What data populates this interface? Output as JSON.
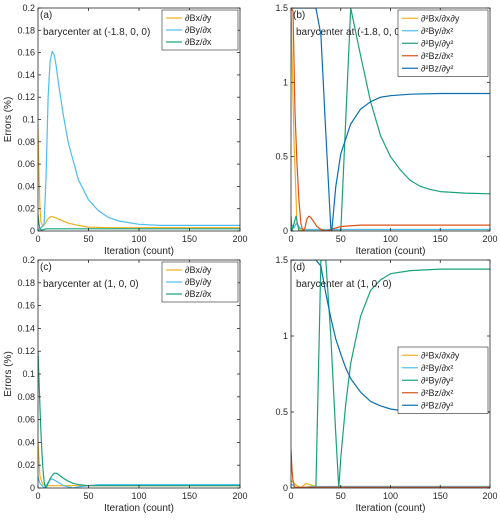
{
  "chart_data": [
    {
      "type": "line",
      "panel_label": "(a)",
      "annotation": "barycenter at (-1.8, 0, 0)",
      "xlabel": "Iteration (count)",
      "ylabel": "Errors (%)",
      "xlim": [
        0,
        200
      ],
      "ylim": [
        0,
        0.2
      ],
      "xticks": [
        "0",
        "50",
        "100",
        "150",
        "200"
      ],
      "yticks": [
        "0",
        "0.02",
        "0.04",
        "0.06",
        "0.08",
        "0.1",
        "0.12",
        "0.14",
        "0.16",
        "0.18",
        "0.2"
      ],
      "legend_position": "top-right",
      "series": [
        {
          "name": "∂Bx/∂y",
          "color": "#EDB120",
          "x": [
            0,
            1,
            2,
            3,
            5,
            8,
            10,
            13,
            17,
            22,
            30,
            40,
            50,
            70,
            100,
            150,
            200
          ],
          "y": [
            0.092,
            0.05,
            0.02,
            0.008,
            0.004,
            0.008,
            0.011,
            0.013,
            0.012,
            0.01,
            0.007,
            0.005,
            0.0035,
            0.003,
            0.003,
            0.003,
            0.003
          ]
        },
        {
          "name": "∂By/∂x",
          "color": "#4DBEEE",
          "x": [
            0,
            3,
            6,
            8,
            10,
            12,
            14,
            16,
            18,
            20,
            25,
            30,
            40,
            50,
            60,
            70,
            80,
            100,
            120,
            150,
            200
          ],
          "y": [
            0.0,
            0.003,
            0.006,
            0.05,
            0.12,
            0.152,
            0.161,
            0.158,
            0.148,
            0.134,
            0.104,
            0.079,
            0.046,
            0.028,
            0.018,
            0.012,
            0.009,
            0.006,
            0.005,
            0.005,
            0.005
          ]
        },
        {
          "name": "∂Bz/∂x",
          "color": "#19A17A",
          "x": [
            0,
            1,
            2,
            3,
            5,
            8,
            10,
            15,
            20,
            50,
            100,
            150,
            200
          ],
          "y": [
            0.015,
            0.006,
            0.002,
            0.001,
            0.001,
            0.002,
            0.002,
            0.002,
            0.002,
            0.002,
            0.002,
            0.002,
            0.002
          ]
        }
      ]
    },
    {
      "type": "line",
      "panel_label": "(b)",
      "annotation": "barycenter at (-1.8, 0, 0)",
      "xlabel": "Iteration (count)",
      "ylabel": "",
      "xlim": [
        0,
        200
      ],
      "ylim": [
        0,
        1.5
      ],
      "xticks": [
        "0",
        "50",
        "100",
        "150",
        "200"
      ],
      "yticks": [
        "0",
        "0.5",
        "1",
        "1.5"
      ],
      "legend_position": "top-right",
      "series": [
        {
          "name": "∂²Bx/∂x∂y",
          "color": "#EDB120",
          "x": [
            0,
            3,
            6,
            9,
            12,
            15,
            20,
            30,
            50,
            100,
            200
          ],
          "y": [
            1.5,
            0.6,
            0.05,
            0.01,
            0.0,
            0.01,
            0.01,
            0.01,
            0.01,
            0.01,
            0.01
          ]
        },
        {
          "name": "∂²By/∂x²",
          "color": "#4DBEEE",
          "x": [
            0,
            3,
            5,
            7,
            9,
            12,
            15,
            20,
            30,
            50,
            100,
            200
          ],
          "y": [
            0.05,
            0.02,
            0.05,
            0.04,
            0.02,
            0.01,
            0.01,
            0.01,
            0.01,
            0.01,
            0.01,
            0.01
          ]
        },
        {
          "name": "∂²By/∂y²",
          "color": "#19A17A",
          "x": [
            0,
            1,
            3,
            5,
            8,
            10,
            15,
            20,
            30,
            50,
            60,
            70,
            80,
            90,
            100,
            110,
            120,
            130,
            140,
            150,
            175,
            200
          ],
          "y": [
            0.1,
            0.0,
            0.05,
            0.1,
            0.0,
            0.0,
            0.0,
            0.0,
            0.0,
            0.0,
            1.5,
            1.18,
            0.87,
            0.64,
            0.5,
            0.41,
            0.34,
            0.3,
            0.28,
            0.265,
            0.255,
            0.25
          ]
        },
        {
          "name": "∂²Bz/∂x²",
          "color": "#D95319",
          "x": [
            0,
            2,
            4,
            6,
            8,
            10,
            12,
            14,
            16,
            18,
            20,
            23,
            26,
            30,
            35,
            40,
            50,
            70,
            100,
            150,
            200
          ],
          "y": [
            1.5,
            1.48,
            0.8,
            0.45,
            0.2,
            0.05,
            0.0,
            0.02,
            0.08,
            0.1,
            0.09,
            0.06,
            0.03,
            0.01,
            0.0,
            0.01,
            0.03,
            0.04,
            0.04,
            0.04,
            0.04
          ]
        },
        {
          "name": "∂²Bz/∂y²",
          "color": "#0A6FB0",
          "x": [
            0,
            5,
            10,
            15,
            20,
            25,
            30,
            35,
            40,
            41,
            45,
            50,
            60,
            70,
            80,
            90,
            100,
            120,
            150,
            200
          ],
          "y": [
            1.5,
            1.5,
            1.5,
            1.5,
            1.5,
            1.5,
            1.32,
            0.66,
            0.02,
            0.0,
            0.3,
            0.52,
            0.72,
            0.82,
            0.87,
            0.9,
            0.91,
            0.92,
            0.925,
            0.925
          ]
        }
      ]
    },
    {
      "type": "line",
      "panel_label": "(c)",
      "annotation": "barycenter at (1, 0, 0)",
      "xlabel": "Iteration (count)",
      "ylabel": "Errors (%)",
      "xlim": [
        0,
        200
      ],
      "ylim": [
        0,
        0.2
      ],
      "xticks": [
        "0",
        "50",
        "100",
        "150",
        "200"
      ],
      "yticks": [
        "0",
        "0.02",
        "0.04",
        "0.06",
        "0.08",
        "0.1",
        "0.12",
        "0.14",
        "0.16",
        "0.18",
        "0.2"
      ],
      "legend_position": "top-right",
      "series": [
        {
          "name": "∂Bx/∂y",
          "color": "#EDB120",
          "x": [
            0,
            2,
            5,
            8,
            10,
            15,
            20,
            30,
            50,
            100,
            200
          ],
          "y": [
            0.04,
            0.01,
            0.003,
            0.002,
            0.002,
            0.002,
            0.002,
            0.002,
            0.002,
            0.002,
            0.002
          ]
        },
        {
          "name": "∂By/∂y",
          "color": "#4DBEEE",
          "x": [
            0,
            2,
            4,
            6,
            8,
            10,
            12,
            14,
            16,
            18,
            20,
            22,
            25,
            30,
            35,
            40,
            50,
            60,
            70,
            100,
            200
          ],
          "y": [
            0.01,
            0.004,
            0.002,
            0.0,
            0.002,
            0.005,
            0.007,
            0.008,
            0.007,
            0.006,
            0.005,
            0.004,
            0.002,
            0.001,
            0.0,
            0.001,
            0.002,
            0.003,
            0.003,
            0.003,
            0.003
          ]
        },
        {
          "name": "∂Bz/∂x",
          "color": "#19A17A",
          "x": [
            0,
            1,
            2,
            3,
            4,
            5,
            6,
            7,
            8,
            10,
            12,
            14,
            16,
            18,
            20,
            23,
            26,
            30,
            35,
            40,
            50,
            60,
            80,
            100,
            150,
            200
          ],
          "y": [
            0.12,
            0.095,
            0.07,
            0.048,
            0.03,
            0.016,
            0.006,
            0.001,
            0.0,
            0.004,
            0.008,
            0.011,
            0.013,
            0.013,
            0.012,
            0.01,
            0.008,
            0.006,
            0.004,
            0.003,
            0.002,
            0.002,
            0.002,
            0.002,
            0.002,
            0.002
          ]
        }
      ]
    },
    {
      "type": "line",
      "panel_label": "(d)",
      "annotation": "barycenter at (1, 0, 0)",
      "xlabel": "Iteration (count)",
      "ylabel": "",
      "xlim": [
        0,
        200
      ],
      "ylim": [
        0,
        1.5
      ],
      "xticks": [
        "0",
        "50",
        "100",
        "150",
        "200"
      ],
      "yticks": [
        "0",
        "0.5",
        "1",
        "1.5"
      ],
      "legend_position": "right",
      "series": [
        {
          "name": "∂²Bx/∂x∂y",
          "color": "#EDB120",
          "x": [
            0,
            5,
            10,
            15,
            20,
            25,
            30,
            40,
            50,
            100,
            200
          ],
          "y": [
            0.05,
            0.02,
            0.0,
            0.03,
            0.02,
            0.01,
            0.0,
            0.01,
            0.01,
            0.01,
            0.01
          ]
        },
        {
          "name": "∂²By/∂x²",
          "color": "#4DBEEE",
          "x": [
            0,
            3,
            6,
            10,
            20,
            50,
            100,
            200
          ],
          "y": [
            0.03,
            0.01,
            0.0,
            0.0,
            0.01,
            0.01,
            0.01,
            0.01
          ]
        },
        {
          "name": "∂²By/∂y²",
          "color": "#19A17A",
          "x": [
            0,
            5,
            10,
            15,
            20,
            25,
            30,
            35,
            40,
            45,
            48,
            50,
            55,
            60,
            70,
            80,
            90,
            100,
            120,
            150,
            200
          ],
          "y": [
            0.0,
            0.0,
            0.0,
            0.0,
            0.0,
            0.0,
            1.5,
            1.5,
            1.0,
            0.35,
            0.0,
            0.2,
            0.55,
            0.82,
            1.13,
            1.3,
            1.37,
            1.41,
            1.43,
            1.44,
            1.44
          ]
        },
        {
          "name": "∂²Bz/∂x²",
          "color": "#D95319",
          "x": [
            0,
            1,
            2,
            3,
            4,
            6,
            8,
            10,
            15,
            20,
            50,
            200
          ],
          "y": [
            0.25,
            0.12,
            0.05,
            0.02,
            0.0,
            0.005,
            0.005,
            0.005,
            0.005,
            0.005,
            0.005,
            0.005
          ]
        },
        {
          "name": "∂²Bz/∂y²",
          "color": "#0A6FB0",
          "x": [
            0,
            10,
            20,
            25,
            30,
            35,
            40,
            45,
            50,
            55,
            60,
            70,
            80,
            90,
            100,
            120,
            150,
            200
          ],
          "y": [
            1.5,
            1.5,
            1.5,
            1.5,
            1.46,
            1.28,
            1.12,
            0.98,
            0.88,
            0.79,
            0.72,
            0.63,
            0.57,
            0.54,
            0.52,
            0.5,
            0.5,
            0.5
          ]
        }
      ]
    }
  ]
}
